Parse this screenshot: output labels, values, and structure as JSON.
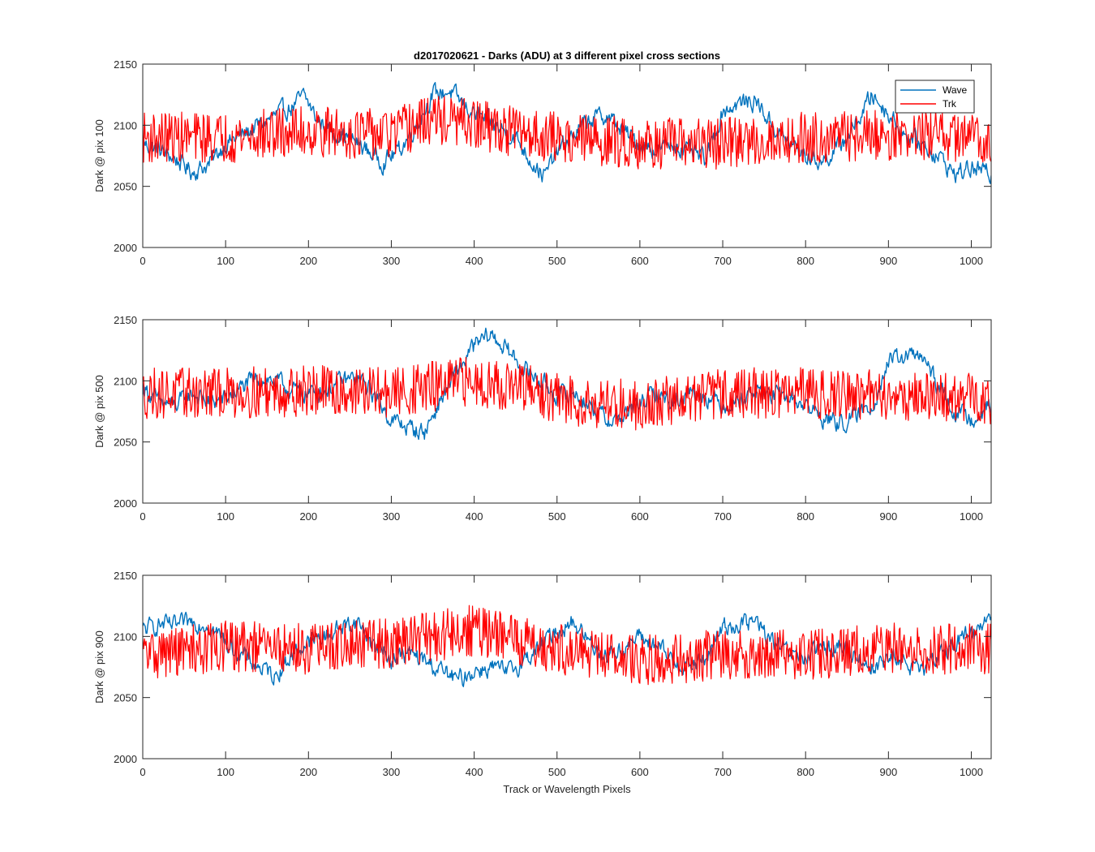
{
  "chart_data": [
    {
      "type": "line",
      "title": "d2017020621 - Darks (ADU) at 3 different pixel cross sections",
      "xlabel": "",
      "ylabel": "Dark @ pix 100",
      "xlim": [
        0,
        1024
      ],
      "ylim": [
        2000,
        2150
      ],
      "xticks": [
        0,
        100,
        200,
        300,
        400,
        500,
        600,
        700,
        800,
        900,
        1000
      ],
      "yticks": [
        2000,
        2050,
        2100,
        2150
      ],
      "legend": {
        "placement": "top-right",
        "entries": [
          "Wave",
          "Trk"
        ]
      },
      "series": [
        {
          "name": "Wave",
          "color": "#0072BD",
          "noise": 6,
          "x": [
            0,
            20,
            40,
            60,
            80,
            100,
            120,
            140,
            160,
            180,
            195,
            210,
            230,
            250,
            270,
            290,
            310,
            330,
            350,
            370,
            390,
            410,
            430,
            450,
            470,
            485,
            500,
            520,
            540,
            560,
            580,
            600,
            620,
            640,
            660,
            680,
            700,
            720,
            740,
            760,
            780,
            800,
            820,
            840,
            860,
            880,
            900,
            920,
            940,
            960,
            980,
            1000,
            1024
          ],
          "y": [
            2085,
            2080,
            2072,
            2062,
            2068,
            2085,
            2092,
            2100,
            2108,
            2115,
            2124,
            2105,
            2095,
            2090,
            2080,
            2070,
            2080,
            2100,
            2125,
            2128,
            2115,
            2105,
            2098,
            2090,
            2070,
            2058,
            2078,
            2092,
            2105,
            2108,
            2095,
            2085,
            2080,
            2085,
            2078,
            2072,
            2112,
            2118,
            2120,
            2100,
            2085,
            2075,
            2070,
            2082,
            2100,
            2125,
            2110,
            2092,
            2085,
            2075,
            2060,
            2065,
            2060
          ]
        },
        {
          "name": "Trk",
          "color": "#FF0000",
          "noise": 15,
          "x": [
            0,
            100,
            200,
            300,
            350,
            400,
            500,
            600,
            700,
            800,
            900,
            1024
          ],
          "y": [
            2090,
            2090,
            2095,
            2092,
            2105,
            2100,
            2090,
            2085,
            2085,
            2090,
            2092,
            2090
          ]
        }
      ]
    },
    {
      "type": "line",
      "title": "",
      "xlabel": "",
      "ylabel": "Dark @ pix 500",
      "xlim": [
        0,
        1024
      ],
      "ylim": [
        2000,
        2150
      ],
      "xticks": [
        0,
        100,
        200,
        300,
        400,
        500,
        600,
        700,
        800,
        900,
        1000
      ],
      "yticks": [
        2000,
        2050,
        2100,
        2150
      ],
      "series": [
        {
          "name": "Wave",
          "color": "#0072BD",
          "noise": 6,
          "x": [
            0,
            20,
            40,
            60,
            80,
            100,
            120,
            140,
            160,
            180,
            200,
            220,
            240,
            260,
            280,
            300,
            320,
            340,
            360,
            380,
            400,
            420,
            440,
            460,
            480,
            500,
            520,
            540,
            560,
            580,
            600,
            620,
            640,
            660,
            680,
            700,
            720,
            740,
            760,
            780,
            800,
            820,
            840,
            860,
            880,
            900,
            920,
            940,
            960,
            980,
            1000,
            1024
          ],
          "y": [
            2095,
            2082,
            2080,
            2090,
            2082,
            2085,
            2095,
            2102,
            2100,
            2092,
            2090,
            2092,
            2100,
            2102,
            2088,
            2068,
            2062,
            2058,
            2085,
            2108,
            2128,
            2138,
            2125,
            2110,
            2100,
            2088,
            2090,
            2080,
            2068,
            2070,
            2082,
            2090,
            2082,
            2092,
            2088,
            2080,
            2085,
            2092,
            2088,
            2086,
            2080,
            2070,
            2065,
            2070,
            2080,
            2115,
            2120,
            2120,
            2095,
            2075,
            2070,
            2080
          ]
        },
        {
          "name": "Trk",
          "color": "#FF0000",
          "noise": 15,
          "x": [
            0,
            100,
            200,
            300,
            400,
            450,
            500,
            600,
            700,
            800,
            900,
            1024
          ],
          "y": [
            2090,
            2090,
            2092,
            2090,
            2100,
            2095,
            2085,
            2080,
            2090,
            2090,
            2088,
            2085
          ]
        }
      ]
    },
    {
      "type": "line",
      "title": "",
      "xlabel": "Track or Wavelength Pixels",
      "ylabel": "Dark @ pix 900",
      "xlim": [
        0,
        1024
      ],
      "ylim": [
        2000,
        2150
      ],
      "xticks": [
        0,
        100,
        200,
        300,
        400,
        500,
        600,
        700,
        800,
        900,
        1000
      ],
      "yticks": [
        2000,
        2050,
        2100,
        2150
      ],
      "series": [
        {
          "name": "Wave",
          "color": "#0072BD",
          "noise": 6,
          "x": [
            0,
            20,
            40,
            60,
            80,
            100,
            120,
            140,
            160,
            180,
            200,
            220,
            240,
            260,
            280,
            300,
            320,
            340,
            360,
            380,
            400,
            420,
            440,
            460,
            480,
            500,
            520,
            540,
            560,
            580,
            600,
            620,
            640,
            660,
            680,
            700,
            720,
            740,
            760,
            780,
            800,
            820,
            840,
            860,
            880,
            900,
            920,
            940,
            960,
            980,
            1000,
            1024
          ],
          "y": [
            2105,
            2110,
            2108,
            2112,
            2110,
            2095,
            2085,
            2075,
            2068,
            2085,
            2095,
            2100,
            2108,
            2112,
            2092,
            2082,
            2086,
            2080,
            2072,
            2064,
            2072,
            2075,
            2070,
            2080,
            2092,
            2105,
            2112,
            2095,
            2085,
            2090,
            2100,
            2092,
            2080,
            2075,
            2082,
            2108,
            2110,
            2112,
            2095,
            2085,
            2082,
            2090,
            2092,
            2085,
            2075,
            2082,
            2080,
            2070,
            2085,
            2095,
            2102,
            2120
          ]
        },
        {
          "name": "Trk",
          "color": "#FF0000",
          "noise": 15,
          "x": [
            0,
            100,
            200,
            300,
            400,
            500,
            600,
            700,
            800,
            900,
            1024
          ],
          "y": [
            2085,
            2092,
            2090,
            2095,
            2105,
            2090,
            2080,
            2085,
            2085,
            2090,
            2090
          ]
        }
      ]
    }
  ]
}
